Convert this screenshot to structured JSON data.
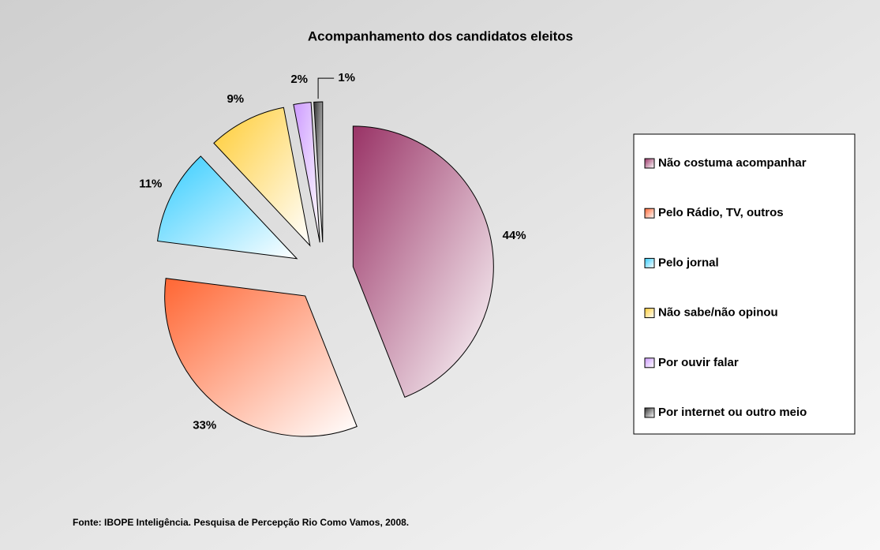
{
  "chart_data": {
    "type": "pie",
    "title": "Acompanhamento dos candidatos eleitos",
    "categories": [
      "Não costuma acompanhar",
      "Pelo Rádio, TV, outros",
      "Pelo jornal",
      "Não sabe/não opinou",
      "Por ouvir falar",
      "Por internet ou outro meio"
    ],
    "values": [
      44,
      33,
      11,
      9,
      2,
      1
    ],
    "value_labels": [
      "44%",
      "33%",
      "11%",
      "9%",
      "2%",
      "1%"
    ],
    "colors": [
      "#993366",
      "#ff6633",
      "#33ccff",
      "#ffcc33",
      "#cc99ff",
      "#333333"
    ],
    "exploded": true,
    "legend": "right",
    "source": "Fonte: IBOPE Inteligência. Pesquisa de Percepção Rio Como Vamos, 2008."
  }
}
